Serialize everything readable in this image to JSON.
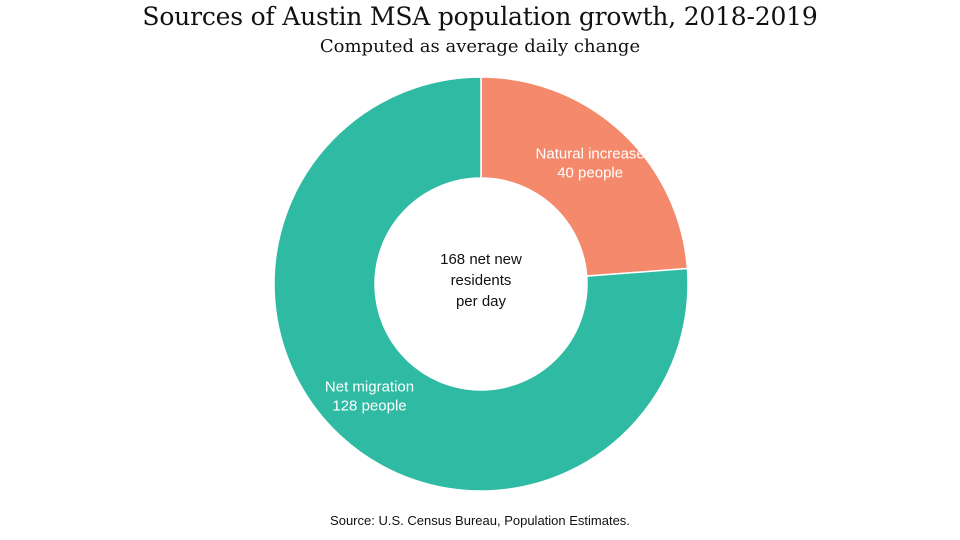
{
  "chart_data": {
    "type": "pie",
    "variant": "donut",
    "title": "Sources of Austin MSA population growth, 2018-2019",
    "subtitle": "Computed as average daily change",
    "center_label": {
      "lines": [
        "168 net new",
        "residents",
        "per day"
      ]
    },
    "slices": [
      {
        "name": "Natural increase",
        "value": 40,
        "label_lines": [
          "Natural increase",
          "40 people"
        ],
        "color": "#f4896b"
      },
      {
        "name": "Net migration",
        "value": 128,
        "label_lines": [
          "Net migration",
          "128 people"
        ],
        "color": "#2fbaa3"
      }
    ],
    "source": "Source: U.S. Census Bureau, Population Estimates."
  }
}
